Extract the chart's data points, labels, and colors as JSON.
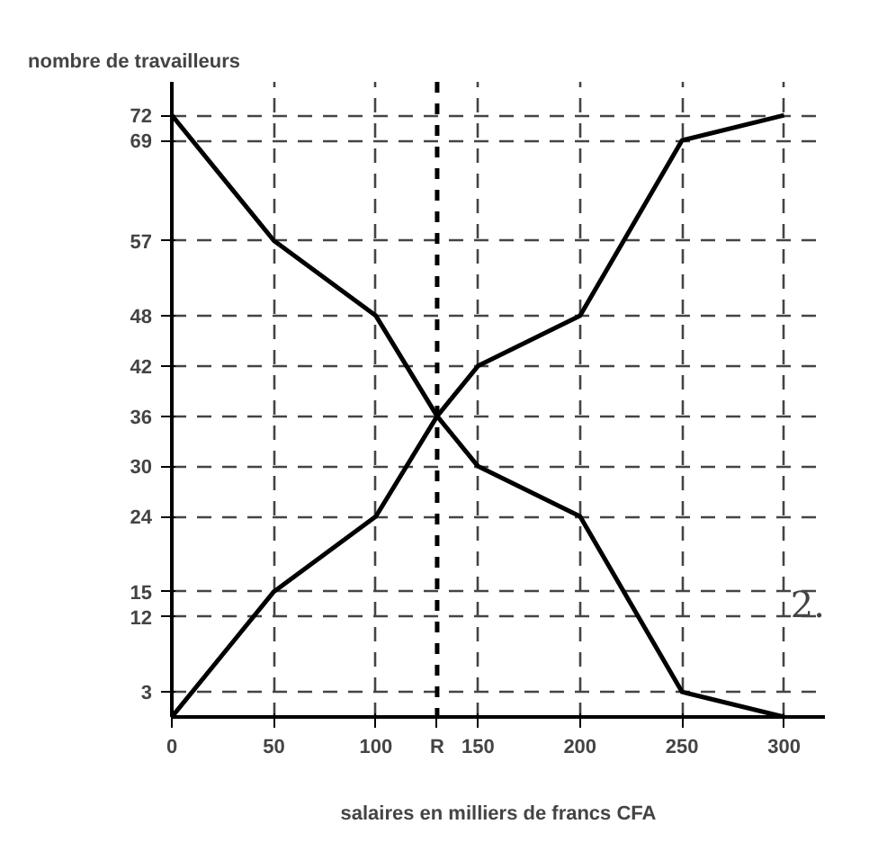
{
  "chart_data": {
    "type": "line",
    "ylabel": "nombre de travailleurs",
    "xlabel": "salaires en milliers de francs CFA",
    "series": [
      {
        "color": "#000000",
        "x": [
          0,
          50,
          100,
          130,
          150,
          200,
          250,
          300
        ],
        "values": [
          0,
          15,
          24,
          36,
          42,
          48,
          69,
          72
        ]
      },
      {
        "color": "#000000",
        "x": [
          0,
          50,
          100,
          130,
          150,
          200,
          250,
          300
        ],
        "values": [
          72,
          57,
          48,
          36,
          30,
          24,
          3,
          0
        ]
      }
    ],
    "xlim": [
      0,
      320
    ],
    "ylim": [
      0,
      76
    ],
    "xticks": [
      0,
      50,
      100,
      150,
      200,
      250,
      300
    ],
    "yticks": [
      3,
      12,
      15,
      24,
      30,
      36,
      42,
      48,
      57,
      69,
      72
    ],
    "ref_lines": [
      {
        "axis": "x",
        "value": 130,
        "label": "R",
        "line_style": "dashed",
        "color": "#000000"
      }
    ],
    "grid": true,
    "line_style": "solid",
    "marker": "none",
    "annotations": [
      "2."
    ]
  }
}
